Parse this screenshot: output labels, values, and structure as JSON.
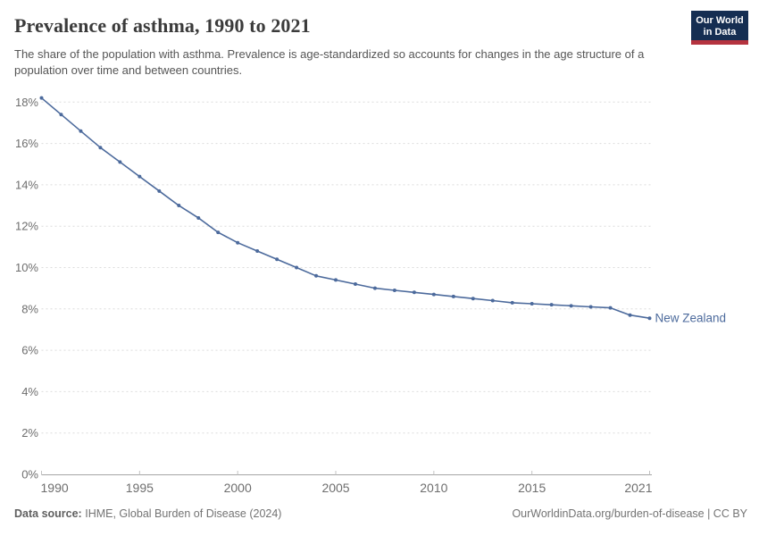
{
  "header": {
    "title": "Prevalence of asthma, 1990 to 2021",
    "subtitle": "The share of the population with asthma. Prevalence is age-standardized so accounts for changes in the age structure of a population over time and between countries.",
    "logo": {
      "line1": "Our World",
      "line2": "in Data"
    }
  },
  "chart_data": {
    "type": "line",
    "title": "Prevalence of asthma, 1990 to 2021",
    "x": [
      1990,
      1991,
      1992,
      1993,
      1994,
      1995,
      1996,
      1997,
      1998,
      1999,
      2000,
      2001,
      2002,
      2003,
      2004,
      2005,
      2006,
      2007,
      2008,
      2009,
      2010,
      2011,
      2012,
      2013,
      2014,
      2015,
      2016,
      2017,
      2018,
      2019,
      2020,
      2021
    ],
    "series": [
      {
        "name": "New Zealand",
        "values": [
          18.2,
          17.4,
          16.6,
          15.8,
          15.1,
          14.4,
          13.7,
          13.0,
          12.4,
          11.7,
          11.2,
          10.8,
          10.4,
          10.0,
          9.6,
          9.4,
          9.2,
          9.0,
          8.9,
          8.8,
          8.7,
          8.6,
          8.5,
          8.4,
          8.3,
          8.25,
          8.2,
          8.15,
          8.1,
          8.05,
          7.7,
          7.55
        ],
        "color": "#4C6A9C"
      }
    ],
    "xlabel": "",
    "ylabel": "",
    "ylim": [
      0,
      18
    ],
    "x_ticks": [
      1990,
      1995,
      2000,
      2005,
      2010,
      2015,
      2021
    ],
    "y_ticks": [
      0,
      2,
      4,
      6,
      8,
      10,
      12,
      14,
      16,
      18
    ],
    "y_tick_suffix": "%",
    "grid": "horizontal-dashed",
    "legend_position": "end-of-line-label",
    "markers": true
  },
  "footer": {
    "source_label": "Data source:",
    "source_value": "IHME, Global Burden of Disease (2024)",
    "credit": "OurWorldinData.org/burden-of-disease | CC BY"
  },
  "colors": {
    "line": "#4C6A9C",
    "grid": "#dcdcdc",
    "axis": "#a6a6a6",
    "tick": "#c2c2c2",
    "axis_text": "#6e6e6e",
    "title_text": "#3b3b3b",
    "subtitle_text": "#565656",
    "logo_bg": "#152e52",
    "logo_stripe": "#b5333f"
  }
}
